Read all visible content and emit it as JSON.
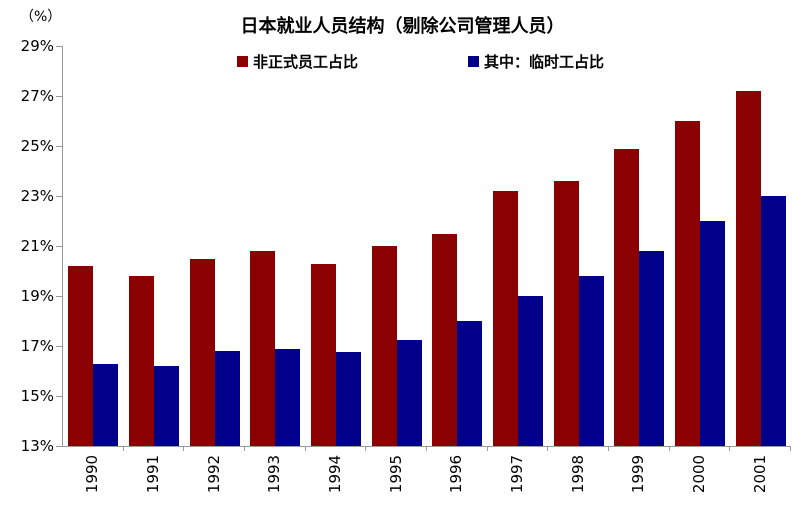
{
  "chart_data": {
    "type": "bar",
    "title": "日本就业人员结构（剔除公司管理人员）",
    "unit_label": "（%）",
    "categories": [
      "1990",
      "1991",
      "1992",
      "1993",
      "1994",
      "1995",
      "1996",
      "1997",
      "1998",
      "1999",
      "2000",
      "2001"
    ],
    "series": [
      {
        "name": "非正式员工占比",
        "color": "#8B0000",
        "values": [
          20.2,
          19.8,
          20.5,
          20.8,
          20.3,
          21.0,
          21.5,
          23.2,
          23.6,
          24.9,
          26.0,
          27.2
        ]
      },
      {
        "name": "其中：临时工占比",
        "color": "#00008B",
        "values": [
          16.3,
          16.2,
          16.8,
          16.9,
          16.75,
          17.25,
          18.0,
          19.0,
          19.8,
          20.8,
          22.0,
          23.0
        ]
      }
    ],
    "ylim": [
      13,
      29
    ],
    "ytick_step": 2,
    "ytick_labels": [
      "29%",
      "27%",
      "25%",
      "23%",
      "21%",
      "19%",
      "17%",
      "15%",
      "13%"
    ],
    "xlabel": "",
    "ylabel": "",
    "grid": false,
    "legend_position": "top",
    "axis_color": "#9a9a9a",
    "text_color": "#000000"
  }
}
